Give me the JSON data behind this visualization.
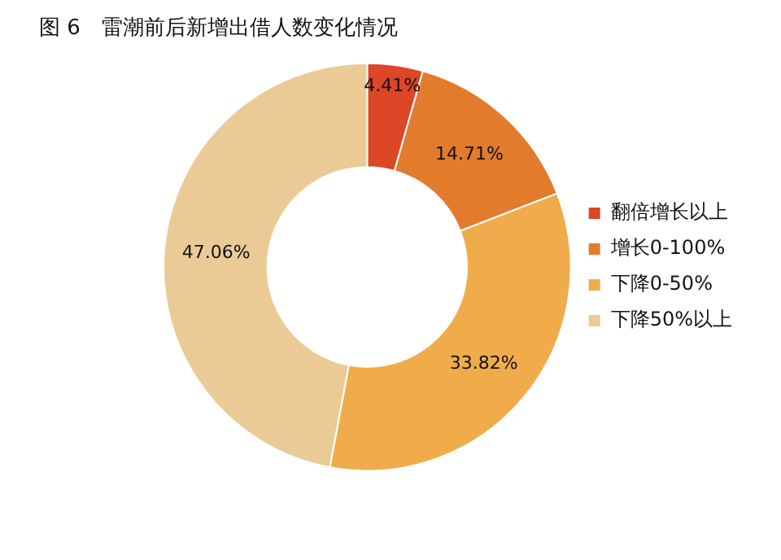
{
  "chart_data": {
    "type": "donut",
    "title": "图 6　雷潮前后新增出借人数变化情况",
    "categories": [
      "翻倍增长以上",
      "增长0-100%",
      "下降0-50%",
      "下降50%以上"
    ],
    "values": [
      4.41,
      14.71,
      33.82,
      47.06
    ],
    "colors": [
      "#dd4627",
      "#e27b2c",
      "#f0ac4b",
      "#eacb96"
    ],
    "value_labels": [
      "4.41%",
      "14.71%",
      "33.82%",
      "47.06%"
    ],
    "legend": "right"
  }
}
